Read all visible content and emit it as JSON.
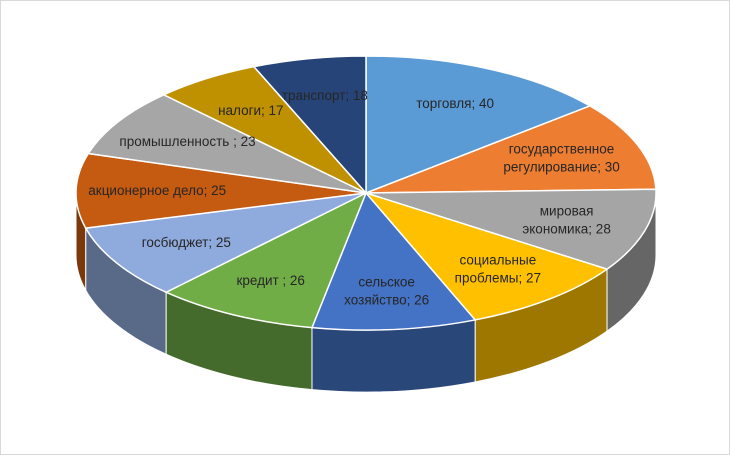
{
  "chart_data": {
    "type": "pie3d",
    "values": [
      40,
      30,
      28,
      27,
      26,
      26,
      25,
      25,
      23,
      17,
      18
    ],
    "value_labels": [
      "торговля; 40",
      "государственное\nрегулирование; 30",
      "мировая\nэкономика; 28",
      "социальные\nпроблемы; 27",
      "сельское\nхозяйство; 26",
      "кредит ; 26",
      "госбюджет; 25",
      "акционерное дело; 25",
      "промышленность ; 23",
      "налоги; 17",
      "транспорт; 18"
    ],
    "colors": [
      "#5b9bd5",
      "#ed7d31",
      "#a5a5a5",
      "#ffc000",
      "#4472c4",
      "#70ad47",
      "#8faadc",
      "#c55a11",
      "#a6a6a6",
      "#bf9000",
      "#264478"
    ]
  }
}
